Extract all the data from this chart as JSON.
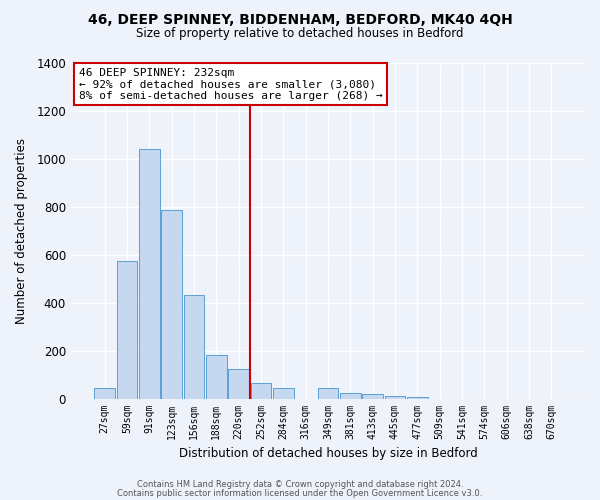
{
  "title": "46, DEEP SPINNEY, BIDDENHAM, BEDFORD, MK40 4QH",
  "subtitle": "Size of property relative to detached houses in Bedford",
  "xlabel": "Distribution of detached houses by size in Bedford",
  "ylabel": "Number of detached properties",
  "bar_labels": [
    "27sqm",
    "59sqm",
    "91sqm",
    "123sqm",
    "156sqm",
    "188sqm",
    "220sqm",
    "252sqm",
    "284sqm",
    "316sqm",
    "349sqm",
    "381sqm",
    "413sqm",
    "445sqm",
    "477sqm",
    "509sqm",
    "541sqm",
    "574sqm",
    "606sqm",
    "638sqm",
    "670sqm"
  ],
  "bar_values": [
    45,
    575,
    1040,
    785,
    430,
    180,
    125,
    65,
    45,
    0,
    45,
    25,
    20,
    10,
    8,
    0,
    0,
    0,
    0,
    0,
    0
  ],
  "bar_color": "#c5d8f0",
  "bar_edge_color": "#5a9fd4",
  "ylim": [
    0,
    1400
  ],
  "yticks": [
    0,
    200,
    400,
    600,
    800,
    1000,
    1200,
    1400
  ],
  "vline_index": 6.5,
  "vline_color": "#cc0000",
  "annotation_title": "46 DEEP SPINNEY: 232sqm",
  "annotation_line1": "← 92% of detached houses are smaller (3,080)",
  "annotation_line2": "8% of semi-detached houses are larger (268) →",
  "annotation_box_facecolor": "#ffffff",
  "annotation_box_edgecolor": "#cc0000",
  "footer1": "Contains HM Land Registry data © Crown copyright and database right 2024.",
  "footer2": "Contains public sector information licensed under the Open Government Licence v3.0.",
  "bg_color": "#eef2fb"
}
